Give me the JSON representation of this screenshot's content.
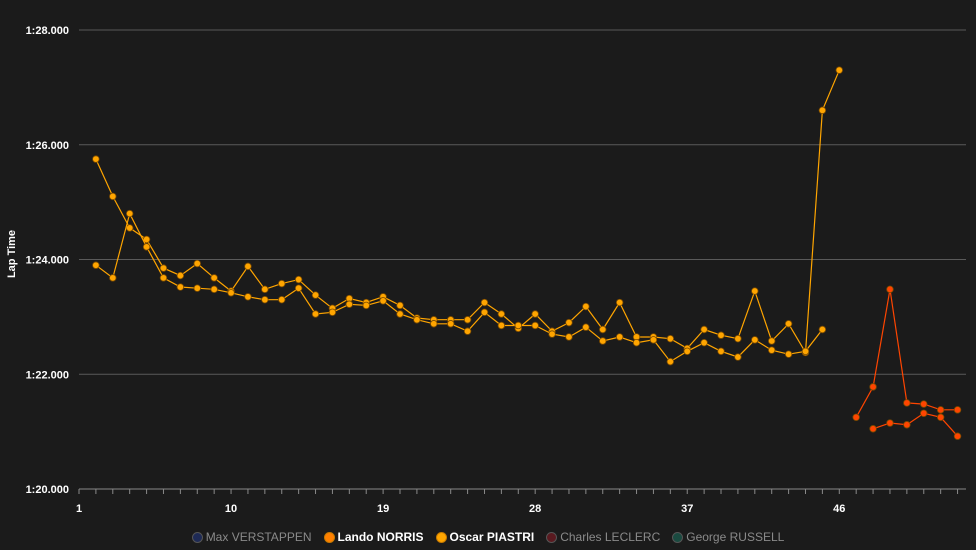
{
  "chart_data": {
    "type": "line",
    "title": "",
    "xlabel": "",
    "ylabel": "Lap Time",
    "x_ticks": [
      "1",
      "10",
      "19",
      "28",
      "37",
      "46"
    ],
    "y_ticks": [
      "1:20.000",
      "1:22.000",
      "1:24.000",
      "1:26.000",
      "1:28.000"
    ],
    "ylim": [
      80.0,
      88.0
    ],
    "xlim": [
      1,
      53.5
    ],
    "grid": true,
    "legend_position": "bottom",
    "series": [
      {
        "name": "Max VERSTAPPEN",
        "color": "#1e2a55",
        "hidden": true,
        "segments": []
      },
      {
        "name": "Lando NORRIS",
        "color": "#ff8000",
        "hidden": false,
        "segments": [
          {
            "color": "#ffa500",
            "points": [
              [
                2,
                85.75
              ],
              [
                3,
                85.1
              ],
              [
                4,
                84.55
              ],
              [
                5,
                84.35
              ],
              [
                6,
                83.85
              ],
              [
                7,
                83.72
              ],
              [
                8,
                83.93
              ],
              [
                9,
                83.68
              ],
              [
                10,
                83.45
              ],
              [
                11,
                83.88
              ],
              [
                12,
                83.48
              ],
              [
                13,
                83.58
              ],
              [
                14,
                83.65
              ],
              [
                15,
                83.38
              ],
              [
                16,
                83.15
              ],
              [
                17,
                83.32
              ],
              [
                18,
                83.25
              ],
              [
                19,
                83.35
              ],
              [
                20,
                83.2
              ],
              [
                21,
                82.98
              ],
              [
                22,
                82.95
              ],
              [
                23,
                82.95
              ],
              [
                24,
                82.95
              ],
              [
                25,
                83.25
              ],
              [
                26,
                83.05
              ],
              [
                27,
                82.8
              ],
              [
                28,
                83.05
              ],
              [
                29,
                82.75
              ],
              [
                30,
                82.9
              ],
              [
                31,
                83.18
              ],
              [
                32,
                82.78
              ],
              [
                33,
                83.25
              ],
              [
                34,
                82.65
              ],
              [
                35,
                82.65
              ],
              [
                36,
                82.62
              ],
              [
                37,
                82.45
              ],
              [
                38,
                82.78
              ],
              [
                39,
                82.68
              ],
              [
                40,
                82.62
              ],
              [
                41,
                83.45
              ],
              [
                42,
                82.58
              ],
              [
                43,
                82.88
              ],
              [
                44,
                82.38
              ],
              [
                45,
                86.6
              ],
              [
                46,
                87.3
              ]
            ]
          },
          {
            "color": "#ff4500",
            "points": [
              [
                48,
                81.05
              ],
              [
                49,
                81.15
              ],
              [
                50,
                81.12
              ],
              [
                51,
                81.32
              ],
              [
                52,
                81.25
              ],
              [
                53,
                80.92
              ]
            ]
          }
        ]
      },
      {
        "name": "Oscar PIASTRI",
        "color": "#ffa500",
        "hidden": false,
        "segments": [
          {
            "color": "#ffa500",
            "points": [
              [
                2,
                83.9
              ],
              [
                3,
                83.68
              ],
              [
                4,
                84.8
              ],
              [
                5,
                84.22
              ],
              [
                6,
                83.68
              ],
              [
                7,
                83.52
              ],
              [
                8,
                83.5
              ],
              [
                9,
                83.48
              ],
              [
                10,
                83.42
              ],
              [
                11,
                83.35
              ],
              [
                12,
                83.3
              ],
              [
                13,
                83.3
              ],
              [
                14,
                83.5
              ],
              [
                15,
                83.05
              ],
              [
                16,
                83.08
              ],
              [
                17,
                83.22
              ],
              [
                18,
                83.2
              ],
              [
                19,
                83.28
              ],
              [
                20,
                83.05
              ],
              [
                21,
                82.95
              ],
              [
                22,
                82.88
              ],
              [
                23,
                82.88
              ],
              [
                24,
                82.75
              ],
              [
                25,
                83.08
              ],
              [
                26,
                82.85
              ],
              [
                27,
                82.85
              ],
              [
                28,
                82.85
              ],
              [
                29,
                82.7
              ],
              [
                30,
                82.65
              ],
              [
                31,
                82.82
              ],
              [
                32,
                82.58
              ],
              [
                33,
                82.65
              ],
              [
                34,
                82.55
              ],
              [
                35,
                82.6
              ],
              [
                36,
                82.22
              ],
              [
                37,
                82.4
              ],
              [
                38,
                82.55
              ],
              [
                39,
                82.4
              ],
              [
                40,
                82.3
              ],
              [
                41,
                82.6
              ],
              [
                42,
                82.42
              ],
              [
                43,
                82.35
              ],
              [
                44,
                82.4
              ],
              [
                45,
                82.78
              ]
            ]
          },
          {
            "color": "#ff4500",
            "points": [
              [
                47,
                81.25
              ],
              [
                48,
                81.78
              ],
              [
                49,
                83.48
              ],
              [
                50,
                81.5
              ],
              [
                51,
                81.48
              ],
              [
                52,
                81.38
              ],
              [
                53,
                81.38
              ]
            ]
          }
        ]
      },
      {
        "name": "Charles LECLERC",
        "color": "#5a1a20",
        "hidden": true,
        "segments": []
      },
      {
        "name": "George RUSSELL",
        "color": "#1a4a40",
        "hidden": true,
        "segments": []
      }
    ]
  },
  "colors": {
    "background": "#1b1b1b",
    "text": "#ffffff",
    "grid": "#5a5a5a",
    "hidden_text": "#8a8a8a"
  }
}
